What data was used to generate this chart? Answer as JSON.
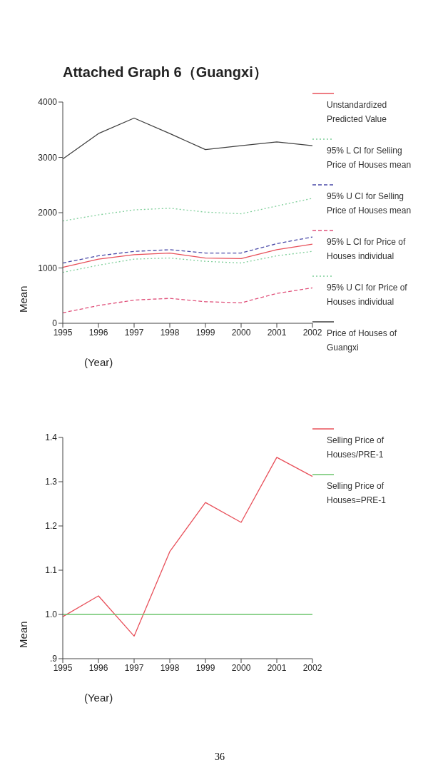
{
  "chart_data": [
    {
      "type": "line",
      "title": "Attached Graph 6（Guangxi）",
      "xlabel": "(Year)",
      "ylabel": "Mean",
      "categories": [
        "1995",
        "1996",
        "1997",
        "1998",
        "1999",
        "2000",
        "2001",
        "2002"
      ],
      "ylim": [
        0,
        4000
      ],
      "yticks": [
        0,
        1000,
        2000,
        3000,
        4000
      ],
      "grid": false,
      "legend": "right",
      "marker": "none",
      "series": [
        {
          "name": "Unstandardized Predicted Value",
          "color": "#e8505a",
          "line_style": "solid",
          "values": [
            1010,
            1160,
            1240,
            1270,
            1180,
            1170,
            1330,
            1430
          ]
        },
        {
          "name": "95% L CI for Seliing Price of Houses mean",
          "color": "#7fcf9a",
          "line_style": "dotted",
          "values": [
            920,
            1050,
            1160,
            1180,
            1120,
            1090,
            1220,
            1300
          ]
        },
        {
          "name": "95% U CI for Selling Price of Houses mean",
          "color": "#4a4aa8",
          "line_style": "dashed",
          "values": [
            1090,
            1220,
            1300,
            1330,
            1270,
            1270,
            1440,
            1560
          ]
        },
        {
          "name": "95% L CI for Price of Houses individual",
          "color": "#e0507a",
          "line_style": "dashed",
          "values": [
            190,
            320,
            420,
            450,
            390,
            370,
            540,
            640
          ]
        },
        {
          "name": "95% U CI for Price of Houses individual",
          "color": "#7fcf9a",
          "line_style": "dotted",
          "values": [
            1850,
            1960,
            2050,
            2080,
            2010,
            1980,
            2120,
            2260
          ]
        },
        {
          "name": "Price of Houses of Guangxi",
          "color": "#404040",
          "line_style": "solid",
          "values": [
            2970,
            3430,
            3710,
            3430,
            3140,
            3210,
            3280,
            3210
          ]
        }
      ]
    },
    {
      "type": "line",
      "xlabel": "(Year)",
      "ylabel": "Mean",
      "categories": [
        "1995",
        "1996",
        "1997",
        "1998",
        "1999",
        "2000",
        "2001",
        "2002"
      ],
      "ylim": [
        0.9,
        1.4
      ],
      "yticks": [
        {
          "value": 0.9,
          "label": ".9"
        },
        {
          "value": 1.0,
          "label": "1.0"
        },
        1.1,
        1.2,
        1.3,
        1.4
      ],
      "grid": false,
      "legend": "right",
      "marker": "none",
      "annotations": [
        "36"
      ],
      "series": [
        {
          "name": "Selling Price of Houses/PRE-1",
          "color": "#e8505a",
          "line_style": "solid",
          "values": [
            0.995,
            1.042,
            0.951,
            1.142,
            1.253,
            1.208,
            1.355,
            1.312
          ]
        },
        {
          "name": "Selling Price of Houses=PRE-1",
          "color": "#6cc46c",
          "line_style": "solid",
          "values": [
            1.0,
            1.0,
            1.0,
            1.0,
            1.0,
            1.0,
            1.0,
            1.0
          ]
        }
      ]
    }
  ]
}
